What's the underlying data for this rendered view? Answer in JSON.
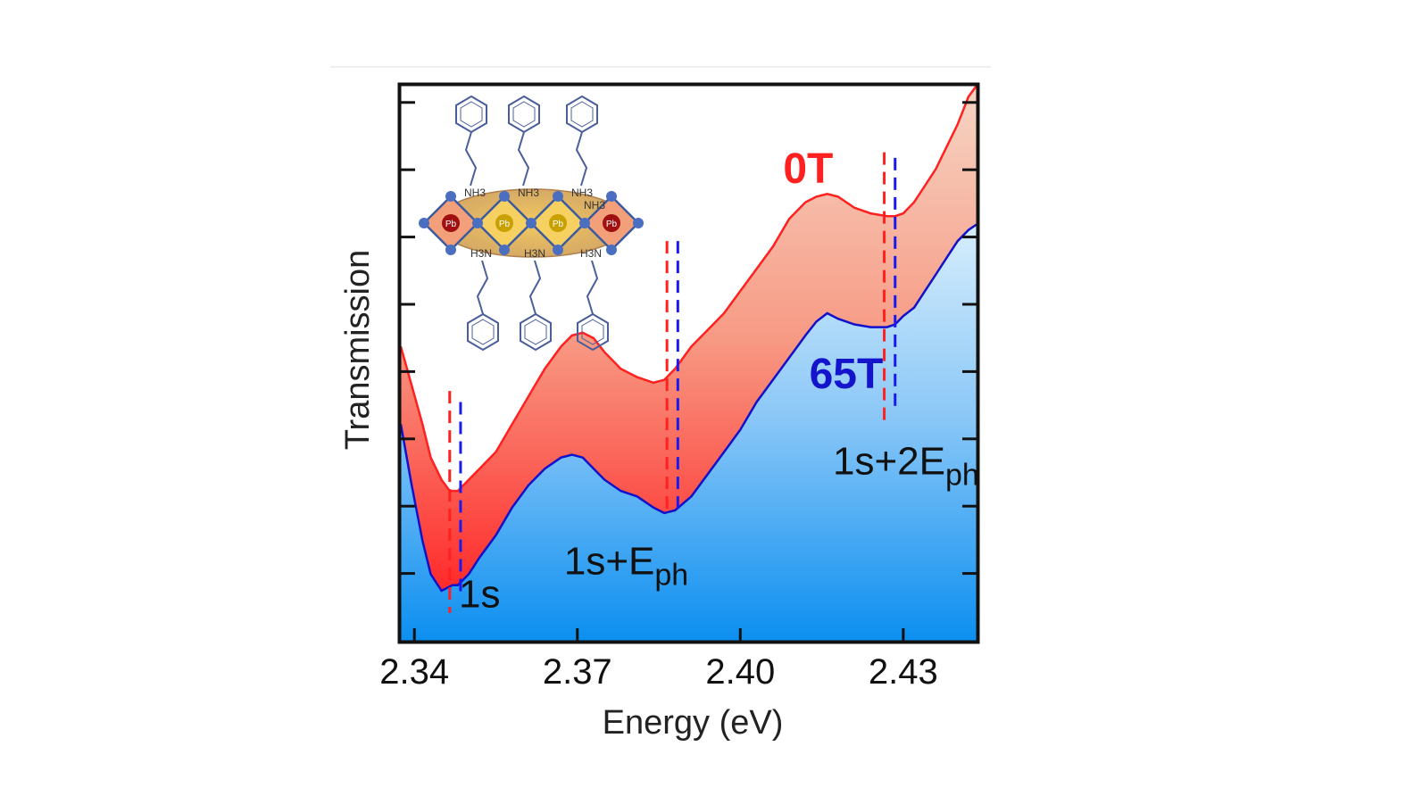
{
  "chart_data": {
    "type": "area",
    "xlabel": "Energy (eV)",
    "ylabel": "Transmission",
    "xlim": [
      2.3375,
      2.4435
    ],
    "ylim": [
      0,
      1
    ],
    "x_ticks": [
      "2.34",
      "2.37",
      "2.40",
      "2.43"
    ],
    "x_tick_values": [
      2.34,
      2.37,
      2.4,
      2.43
    ],
    "y_tick_labels_shown": false,
    "grid": false,
    "series": [
      {
        "name": "0T",
        "color": "#ff2020",
        "fill_top": "#f7cbb6",
        "fill_bottom": "#ff2a2a",
        "x": [
          2.3375,
          2.3395,
          2.3415,
          2.343,
          2.345,
          2.3465,
          2.348,
          2.35,
          2.352,
          2.355,
          2.358,
          2.361,
          2.364,
          2.367,
          2.369,
          2.371,
          2.373,
          2.375,
          2.378,
          2.381,
          2.384,
          2.386,
          2.388,
          2.391,
          2.394,
          2.397,
          2.4,
          2.403,
          2.406,
          2.409,
          2.412,
          2.414,
          2.416,
          2.418,
          2.421,
          2.424,
          2.427,
          2.4285,
          2.43,
          2.432,
          2.434,
          2.436,
          2.438,
          2.44,
          2.442,
          2.4435
        ],
        "values": [
          0.53,
          0.46,
          0.39,
          0.33,
          0.29,
          0.27,
          0.27,
          0.29,
          0.31,
          0.34,
          0.39,
          0.44,
          0.49,
          0.53,
          0.55,
          0.555,
          0.545,
          0.52,
          0.49,
          0.475,
          0.465,
          0.47,
          0.49,
          0.53,
          0.56,
          0.59,
          0.63,
          0.67,
          0.71,
          0.76,
          0.79,
          0.8,
          0.805,
          0.8,
          0.78,
          0.77,
          0.765,
          0.765,
          0.77,
          0.79,
          0.82,
          0.85,
          0.89,
          0.93,
          0.98,
          1.0
        ]
      },
      {
        "name": "65T",
        "color": "#1111cc",
        "fill_top": "#cfe8fb",
        "fill_bottom": "#0a8ef0",
        "x": [
          2.3375,
          2.3395,
          2.3415,
          2.343,
          2.345,
          2.346,
          2.347,
          2.348,
          2.35,
          2.352,
          2.355,
          2.358,
          2.361,
          2.364,
          2.367,
          2.369,
          2.371,
          2.373,
          2.375,
          2.378,
          2.381,
          2.384,
          2.386,
          2.388,
          2.391,
          2.394,
          2.397,
          2.4,
          2.403,
          2.406,
          2.409,
          2.412,
          2.414,
          2.416,
          2.418,
          2.421,
          2.424,
          2.427,
          2.4285,
          2.43,
          2.432,
          2.434,
          2.436,
          2.438,
          2.44,
          2.442,
          2.4435
        ],
        "values": [
          0.39,
          0.28,
          0.18,
          0.12,
          0.09,
          0.095,
          0.1,
          0.1,
          0.12,
          0.15,
          0.19,
          0.24,
          0.28,
          0.31,
          0.33,
          0.335,
          0.33,
          0.31,
          0.29,
          0.27,
          0.26,
          0.24,
          0.23,
          0.235,
          0.26,
          0.3,
          0.34,
          0.38,
          0.43,
          0.47,
          0.51,
          0.55,
          0.575,
          0.59,
          0.58,
          0.57,
          0.565,
          0.565,
          0.57,
          0.585,
          0.6,
          0.63,
          0.66,
          0.69,
          0.72,
          0.74,
          0.75
        ]
      }
    ],
    "series_labels": [
      {
        "text": "0T",
        "color": "#ff2020",
        "x": 2.4125,
        "y": 0.825
      },
      {
        "text": "65T",
        "color": "#1414cc",
        "x": 2.4195,
        "y": 0.455
      }
    ],
    "markers": [
      {
        "x": 2.3465,
        "color": "#ff2020",
        "y_range": [
          0.05,
          0.45
        ]
      },
      {
        "x": 2.3485,
        "color": "#1a1aee",
        "y_range": [
          0.08,
          0.43
        ]
      },
      {
        "x": 2.3865,
        "color": "#ff2020",
        "y_range": [
          0.23,
          0.72
        ]
      },
      {
        "x": 2.3885,
        "color": "#1a1aee",
        "y_range": [
          0.23,
          0.72
        ]
      },
      {
        "x": 2.4265,
        "color": "#ff2020",
        "y_range": [
          0.39,
          0.88
        ]
      },
      {
        "x": 2.4285,
        "color": "#1a1aee",
        "y_range": [
          0.42,
          0.87
        ]
      }
    ],
    "annotations": [
      {
        "text": "1s",
        "sub": "",
        "x": 2.352,
        "y": 0.06
      },
      {
        "text": "1s+E",
        "sub": "ph",
        "x": 2.379,
        "y": 0.12
      },
      {
        "text": "1s+2E",
        "sub": "ph",
        "x": 2.4305,
        "y": 0.3
      }
    ]
  },
  "inset": {
    "type": "molecular-structure",
    "atom_labels": [
      "Pb",
      "Pb",
      "Pb",
      "Pb"
    ],
    "amine_labels": [
      "NH3",
      "NH3",
      "NH3",
      "NH3",
      "H3N",
      "H3N",
      "H3N"
    ]
  }
}
